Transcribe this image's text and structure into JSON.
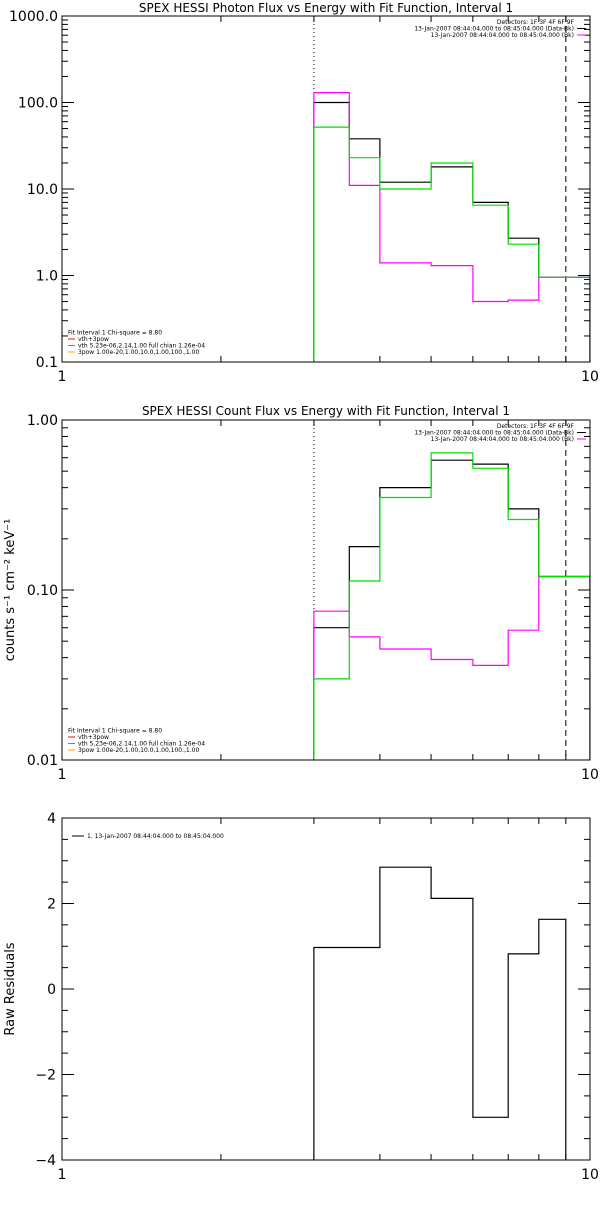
{
  "chart_data": [
    {
      "type": "line",
      "title": "SPEX HESSI Photon Flux vs Energy with Fit Function, Interval 1",
      "xlabel": "",
      "ylabel": "",
      "x_scale": "log",
      "y_scale": "log",
      "xlim": [
        1,
        10
      ],
      "ylim": [
        0.1,
        1000
      ],
      "x_ticks": [
        "1",
        "10"
      ],
      "y_ticks": [
        "0.1",
        "1.0",
        "10.0",
        "100.0",
        "1000.0"
      ],
      "edges": [
        3,
        3.5,
        4,
        5,
        6,
        7,
        8,
        9,
        10
      ],
      "series": [
        {
          "name": "",
          "color": "#000000",
          "values": [
            100,
            38,
            12,
            18,
            7,
            2.7,
            0.95,
            0.95
          ]
        },
        {
          "name": "",
          "color": "#ff00ff",
          "values": [
            130,
            11,
            1.4,
            1.3,
            0.5,
            0.52,
            0.95,
            0.95
          ]
        },
        {
          "name": "",
          "color": "#00dd00",
          "values": [
            52,
            23,
            10,
            20,
            6.5,
            2.3,
            0.95,
            0.95
          ]
        }
      ],
      "vlines": [
        {
          "x": 3,
          "style": "dotted"
        },
        {
          "x": 9,
          "style": "dashed"
        }
      ],
      "legend_tr": [
        {
          "text": "Detectors: 1F 3F 4F 6F 9F",
          "color": "#000000"
        },
        {
          "text": "13-Jan-2007 08:44:04.000 to 08:45:04.000 (Data-Bk)",
          "color": "#000000"
        },
        {
          "text": "13-Jan-2007 08:44:04.000 to 08:45:04.000 (Bk)",
          "color": "#ff00ff"
        }
      ],
      "legend_bl": [
        {
          "text": "Fit Interval 1   Chi-square = 8.80",
          "color": null
        },
        {
          "text": "vth+3pow",
          "color": "#ff0000"
        },
        {
          "text": "vth 5.23e-06,2.14,1.00  full chian 1.26e-04",
          "color": "#00dd00"
        },
        {
          "text": "3pow 1.00e-20,1.00,10.0,1.00,100.,1.00",
          "color": "#ffaa00"
        }
      ]
    },
    {
      "type": "line",
      "title": "SPEX HESSI Count Flux vs Energy with Fit Function, Interval 1",
      "xlabel": "",
      "ylabel": "counts s⁻¹ cm⁻² keV⁻¹",
      "x_scale": "log",
      "y_scale": "log",
      "xlim": [
        1,
        10
      ],
      "ylim": [
        0.01,
        1.0
      ],
      "x_ticks": [
        "1",
        "10"
      ],
      "y_ticks": [
        "0.01",
        "0.10",
        "1.00"
      ],
      "edges": [
        3,
        3.5,
        4,
        5,
        6,
        7,
        8,
        9,
        10
      ],
      "series": [
        {
          "name": "",
          "color": "#000000",
          "values": [
            0.06,
            0.18,
            0.4,
            0.58,
            0.55,
            0.3,
            0.12,
            0.12
          ]
        },
        {
          "name": "",
          "color": "#ff00ff",
          "values": [
            0.075,
            0.053,
            0.045,
            0.039,
            0.036,
            0.058,
            0.12,
            0.12
          ]
        },
        {
          "name": "",
          "color": "#00dd00",
          "values": [
            0.03,
            0.113,
            0.35,
            0.64,
            0.52,
            0.26,
            0.12,
            0.12
          ]
        }
      ],
      "vlines": [
        {
          "x": 3,
          "style": "dotted"
        },
        {
          "x": 9,
          "style": "dashed"
        }
      ],
      "legend_tr": [
        {
          "text": "Detectors: 1F 3F 4F 6F 9F",
          "color": "#000000"
        },
        {
          "text": "13-Jan-2007 08:44:04.000 to 08:45:04.000 (Data-Bk)",
          "color": "#000000"
        },
        {
          "text": "13-Jan-2007 08:44:04.000 to 08:45:04.000 (Bk)",
          "color": "#ff00ff"
        }
      ],
      "legend_bl": [
        {
          "text": "Fit Interval 1   Chi-square = 8.80",
          "color": null
        },
        {
          "text": "vth+3pow",
          "color": "#ff0000"
        },
        {
          "text": "vth 5.23e-06,2.14,1.00  full chian 1.26e-04",
          "color": "#00dd00"
        },
        {
          "text": "3pow 1.00e-20,1.00,10.0,1.00,100.,1.00",
          "color": "#ffaa00"
        }
      ]
    },
    {
      "type": "line",
      "title": "",
      "xlabel": "",
      "ylabel": "Raw Residuals",
      "x_scale": "log",
      "y_scale": "linear",
      "xlim": [
        1,
        10
      ],
      "ylim": [
        -4,
        4
      ],
      "x_ticks": [
        "1",
        "10"
      ],
      "y_ticks": [
        "−4",
        "−2",
        "0",
        "2",
        "4"
      ],
      "y_tick_values": [
        -4,
        -2,
        0,
        2,
        4
      ],
      "edges": [
        3,
        4,
        5,
        6,
        7,
        8,
        9
      ],
      "series": [
        {
          "name": "1. 13-Jan-2007 08:44:04.000 to 08:45:04.000",
          "color": "#000000",
          "values": [
            0.97,
            2.85,
            2.12,
            -3.0,
            0.82,
            1.63
          ]
        }
      ],
      "vlines": [],
      "legend_tr": [],
      "legend_tl": [
        {
          "text": "1. 13-Jan-2007 08:44:04.000 to 08:45:04.000",
          "color": "#000000"
        }
      ],
      "legend_bl": []
    }
  ]
}
